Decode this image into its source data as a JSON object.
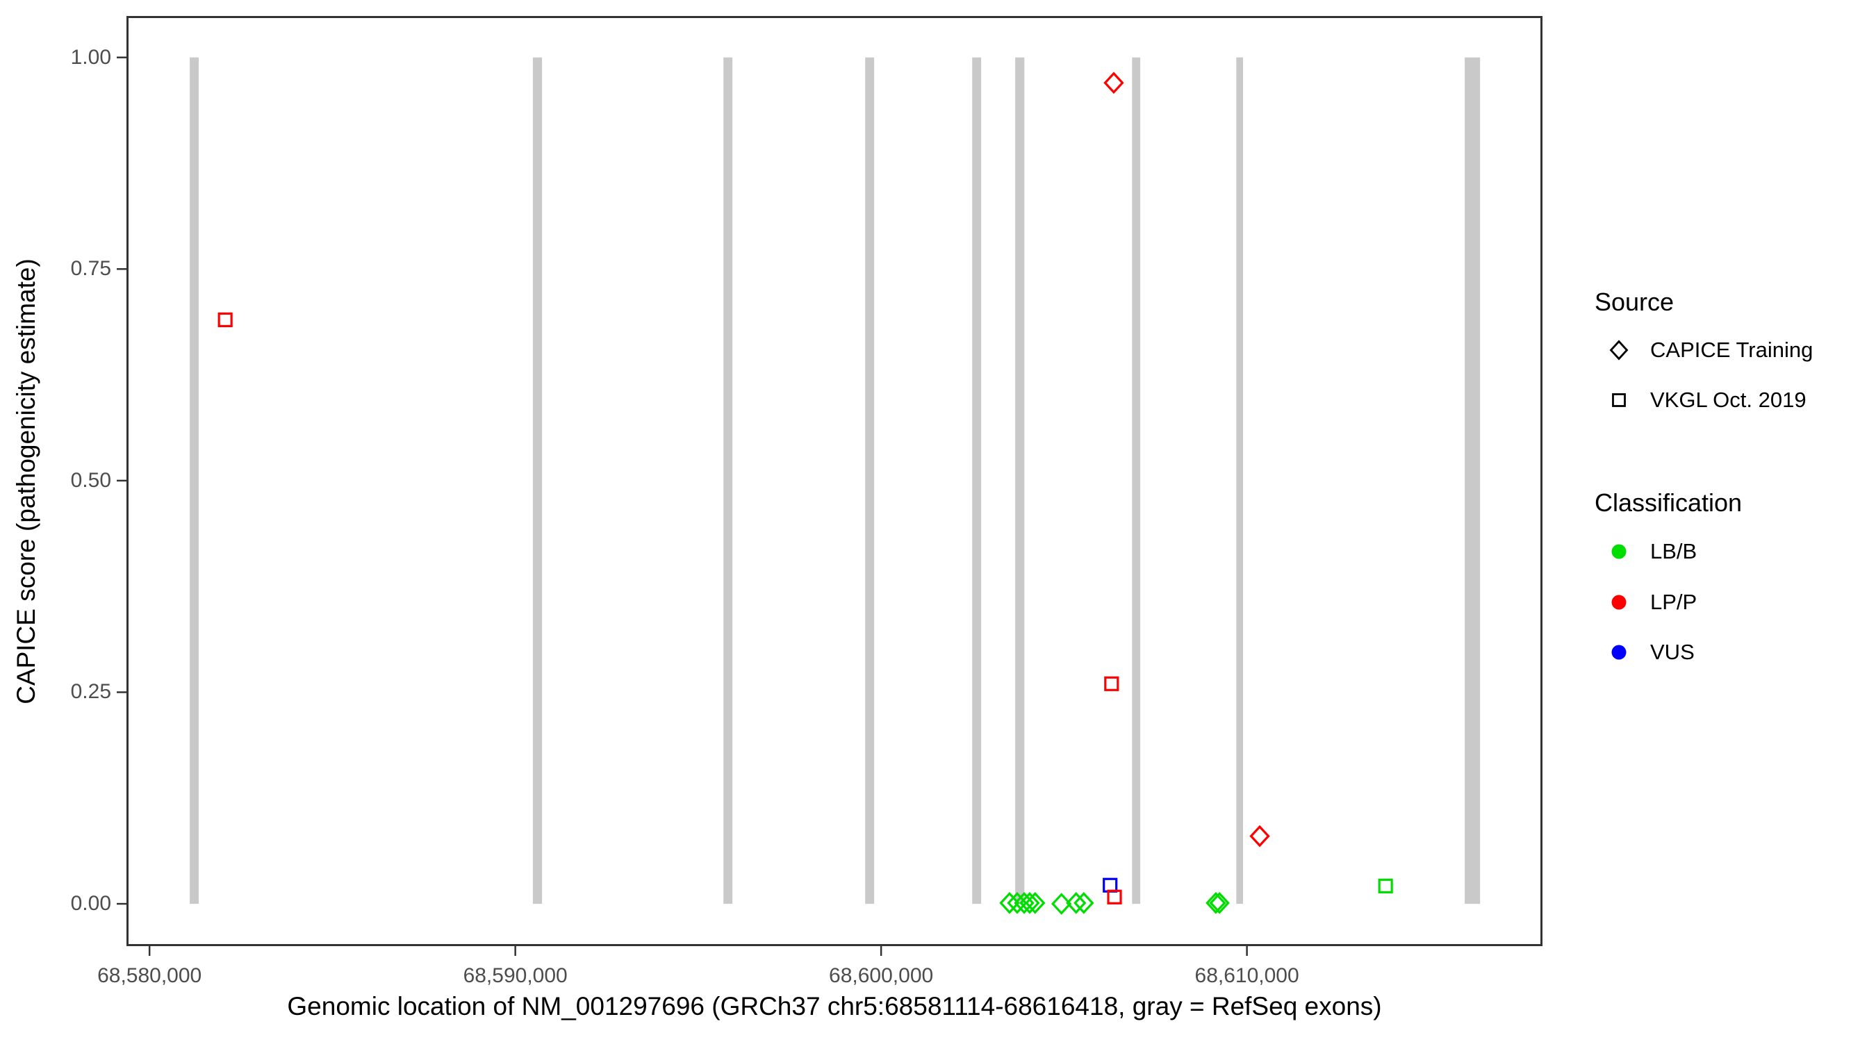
{
  "chart_data": {
    "type": "scatter",
    "title": "",
    "xlabel": "Genomic location of NM_001297696 (GRCh37 chr5:68581114-68616418, gray = RefSeq exons)",
    "ylabel": "CAPICE score (pathogenicity estimate)",
    "xlim": [
      68579370,
      68618080
    ],
    "ylim": [
      -0.05,
      1.049
    ],
    "grid": false,
    "x_ticks": [
      {
        "value": 68580000,
        "label": "68,580,000"
      },
      {
        "value": 68590000,
        "label": "68,590,000"
      },
      {
        "value": 68600000,
        "label": "68,600,000"
      },
      {
        "value": 68610000,
        "label": "68,610,000"
      }
    ],
    "y_ticks": [
      {
        "value": 0.0,
        "label": "0.00"
      },
      {
        "value": 0.25,
        "label": "0.25"
      },
      {
        "value": 0.5,
        "label": "0.50"
      },
      {
        "value": 0.75,
        "label": "0.75"
      },
      {
        "value": 1.0,
        "label": "1.00"
      }
    ],
    "exon_color": "#c9c9c9",
    "exon_regions": [
      [
        68581100,
        68581345
      ],
      [
        68590480,
        68590730
      ],
      [
        68595690,
        68595935
      ],
      [
        68599565,
        68599810
      ],
      [
        68602490,
        68602735
      ],
      [
        68603665,
        68603915
      ],
      [
        68606860,
        68607085
      ],
      [
        68609710,
        68609895
      ],
      [
        68615955,
        68616375
      ]
    ],
    "classification_colors": {
      "LB/B": "#00dd00",
      "LP/P": "#ff0000",
      "VUS": "#0000ff"
    },
    "series": [
      {
        "name": "CAPICE Training",
        "marker": "diamond",
        "points": [
          {
            "pos": 68606360,
            "score": 0.97,
            "classification": "LP/P"
          },
          {
            "pos": 68610350,
            "score": 0.08,
            "classification": "LP/P"
          },
          {
            "pos": 68603510,
            "score": 0.001,
            "classification": "LB/B"
          },
          {
            "pos": 68603720,
            "score": 0.001,
            "classification": "LB/B"
          },
          {
            "pos": 68603910,
            "score": 0.001,
            "classification": "LB/B"
          },
          {
            "pos": 68604060,
            "score": 0.001,
            "classification": "LB/B"
          },
          {
            "pos": 68604210,
            "score": 0.001,
            "classification": "LB/B"
          },
          {
            "pos": 68604930,
            "score": 0.0,
            "classification": "LB/B"
          },
          {
            "pos": 68605330,
            "score": 0.001,
            "classification": "LB/B"
          },
          {
            "pos": 68605540,
            "score": 0.001,
            "classification": "LB/B"
          },
          {
            "pos": 68609150,
            "score": 0.001,
            "classification": "LB/B"
          },
          {
            "pos": 68609250,
            "score": 0.001,
            "classification": "LB/B"
          }
        ]
      },
      {
        "name": "VKGL Oct. 2019",
        "marker": "square",
        "points": [
          {
            "pos": 68582070,
            "score": 0.69,
            "classification": "LP/P"
          },
          {
            "pos": 68606300,
            "score": 0.26,
            "classification": "LP/P"
          },
          {
            "pos": 68606260,
            "score": 0.022,
            "classification": "VUS"
          },
          {
            "pos": 68606380,
            "score": 0.008,
            "classification": "LP/P"
          },
          {
            "pos": 68613790,
            "score": 0.021,
            "classification": "LB/B"
          }
        ]
      }
    ]
  },
  "legend": {
    "source": {
      "title": "Source",
      "items": [
        {
          "label": "CAPICE Training",
          "marker": "diamond"
        },
        {
          "label": "VKGL Oct. 2019",
          "marker": "square"
        }
      ]
    },
    "classification": {
      "title": "Classification",
      "items": [
        {
          "label": "LB/B",
          "color": "#00dd00"
        },
        {
          "label": "LP/P",
          "color": "#ff0000"
        },
        {
          "label": "VUS",
          "color": "#0000ff"
        }
      ]
    }
  }
}
